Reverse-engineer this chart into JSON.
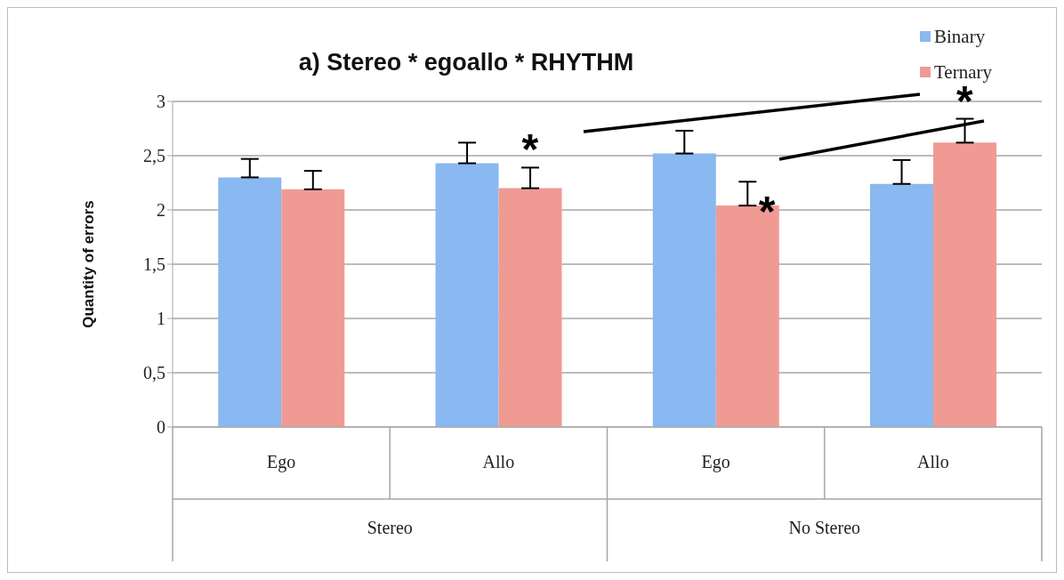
{
  "chart_data": {
    "type": "bar",
    "title": "a) Stereo * egoallo * RHYTHM",
    "ylabel": "Quantity of errors",
    "categories": [
      "Ego",
      "Allo",
      "Ego",
      "Allo"
    ],
    "series": [
      {
        "name": "Binary",
        "color": "#8ab8f0",
        "values": [
          2.3,
          2.43,
          2.52,
          2.24
        ],
        "errors": [
          0.17,
          0.19,
          0.21,
          0.22
        ]
      },
      {
        "name": "Ternary",
        "color": "#f09a94",
        "values": [
          2.19,
          2.2,
          2.04,
          2.62
        ],
        "errors": [
          0.17,
          0.19,
          0.22,
          0.22
        ]
      }
    ],
    "ylim": [
      0,
      3
    ],
    "yticks": [
      0,
      {
        "value": 0.5,
        "label": "0,5"
      },
      1,
      {
        "value": 1.5,
        "label": "1,5"
      },
      2,
      {
        "value": 2.5,
        "label": "2,5"
      },
      3
    ],
    "grid": "y",
    "legend": "top right",
    "annotations": [
      "Stereo",
      "No Stereo",
      "*",
      "*",
      "*"
    ]
  }
}
